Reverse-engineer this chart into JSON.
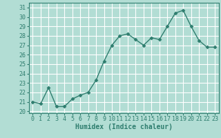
{
  "x": [
    0,
    1,
    2,
    3,
    4,
    5,
    6,
    7,
    8,
    9,
    10,
    11,
    12,
    13,
    14,
    15,
    16,
    17,
    18,
    19,
    20,
    21,
    22,
    23
  ],
  "y": [
    21.0,
    20.8,
    22.5,
    20.5,
    20.5,
    21.3,
    21.7,
    22.0,
    23.3,
    25.3,
    27.0,
    28.0,
    28.2,
    27.6,
    27.0,
    27.8,
    27.6,
    29.0,
    30.4,
    30.7,
    29.0,
    27.5,
    26.8,
    26.8
  ],
  "line_color": "#2e7d6e",
  "marker_color": "#2e7d6e",
  "bg_color": "#b2ddd4",
  "grid_color": "#ffffff",
  "tick_label_color": "#2e7d6e",
  "xlabel": "Humidex (Indice chaleur)",
  "ylabel_ticks": [
    20,
    21,
    22,
    23,
    24,
    25,
    26,
    27,
    28,
    29,
    30,
    31
  ],
  "ylim": [
    19.8,
    31.5
  ],
  "xlim": [
    -0.5,
    23.5
  ],
  "xlabel_fontsize": 7,
  "tick_fontsize": 6,
  "linewidth": 1.0,
  "markersize": 2.5
}
